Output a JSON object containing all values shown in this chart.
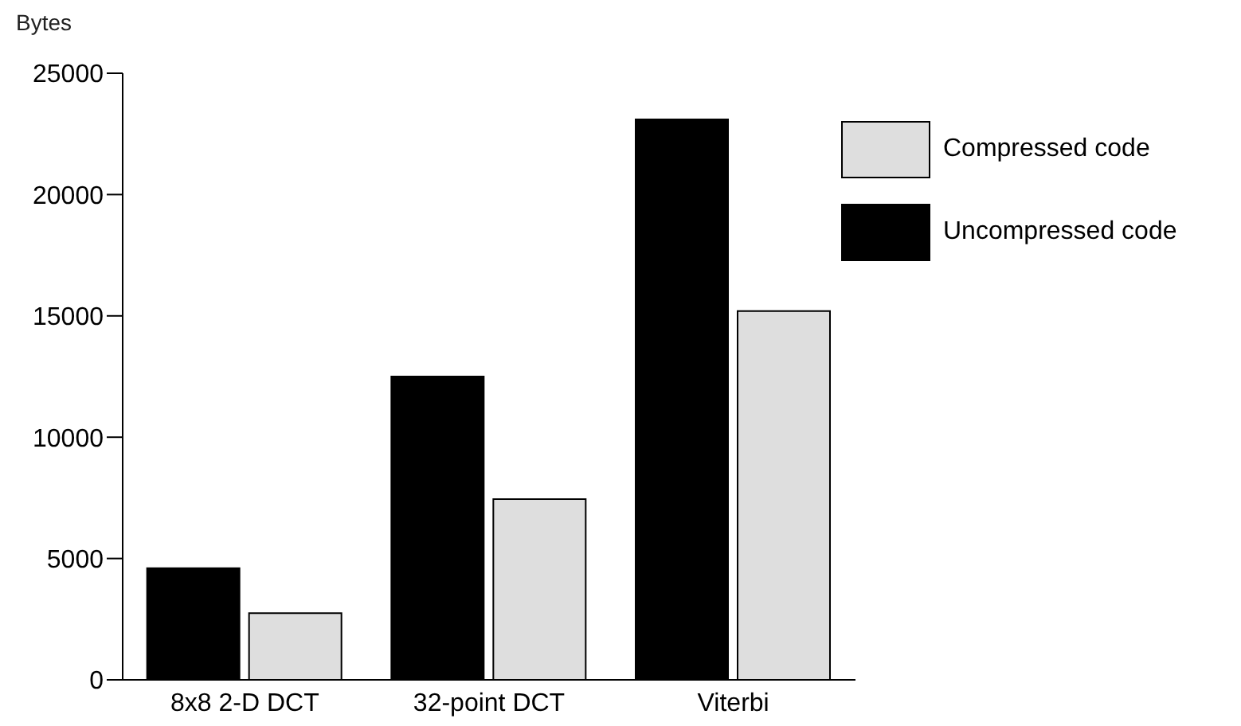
{
  "chart_data": {
    "type": "bar",
    "ylabel": "Bytes",
    "categories": [
      "8x8 2-D DCT",
      "32-point DCT",
      "Viterbi"
    ],
    "series": [
      {
        "name": "Uncompressed code",
        "color": "#000000",
        "values": [
          4600,
          12500,
          23100
        ]
      },
      {
        "name": "Compressed code",
        "color": "#dedede",
        "values": [
          2750,
          7450,
          15200
        ]
      }
    ],
    "ylim": [
      0,
      25000
    ],
    "yticks": [
      0,
      5000,
      10000,
      15000,
      20000,
      25000
    ],
    "grid": false,
    "legend": "top right"
  }
}
